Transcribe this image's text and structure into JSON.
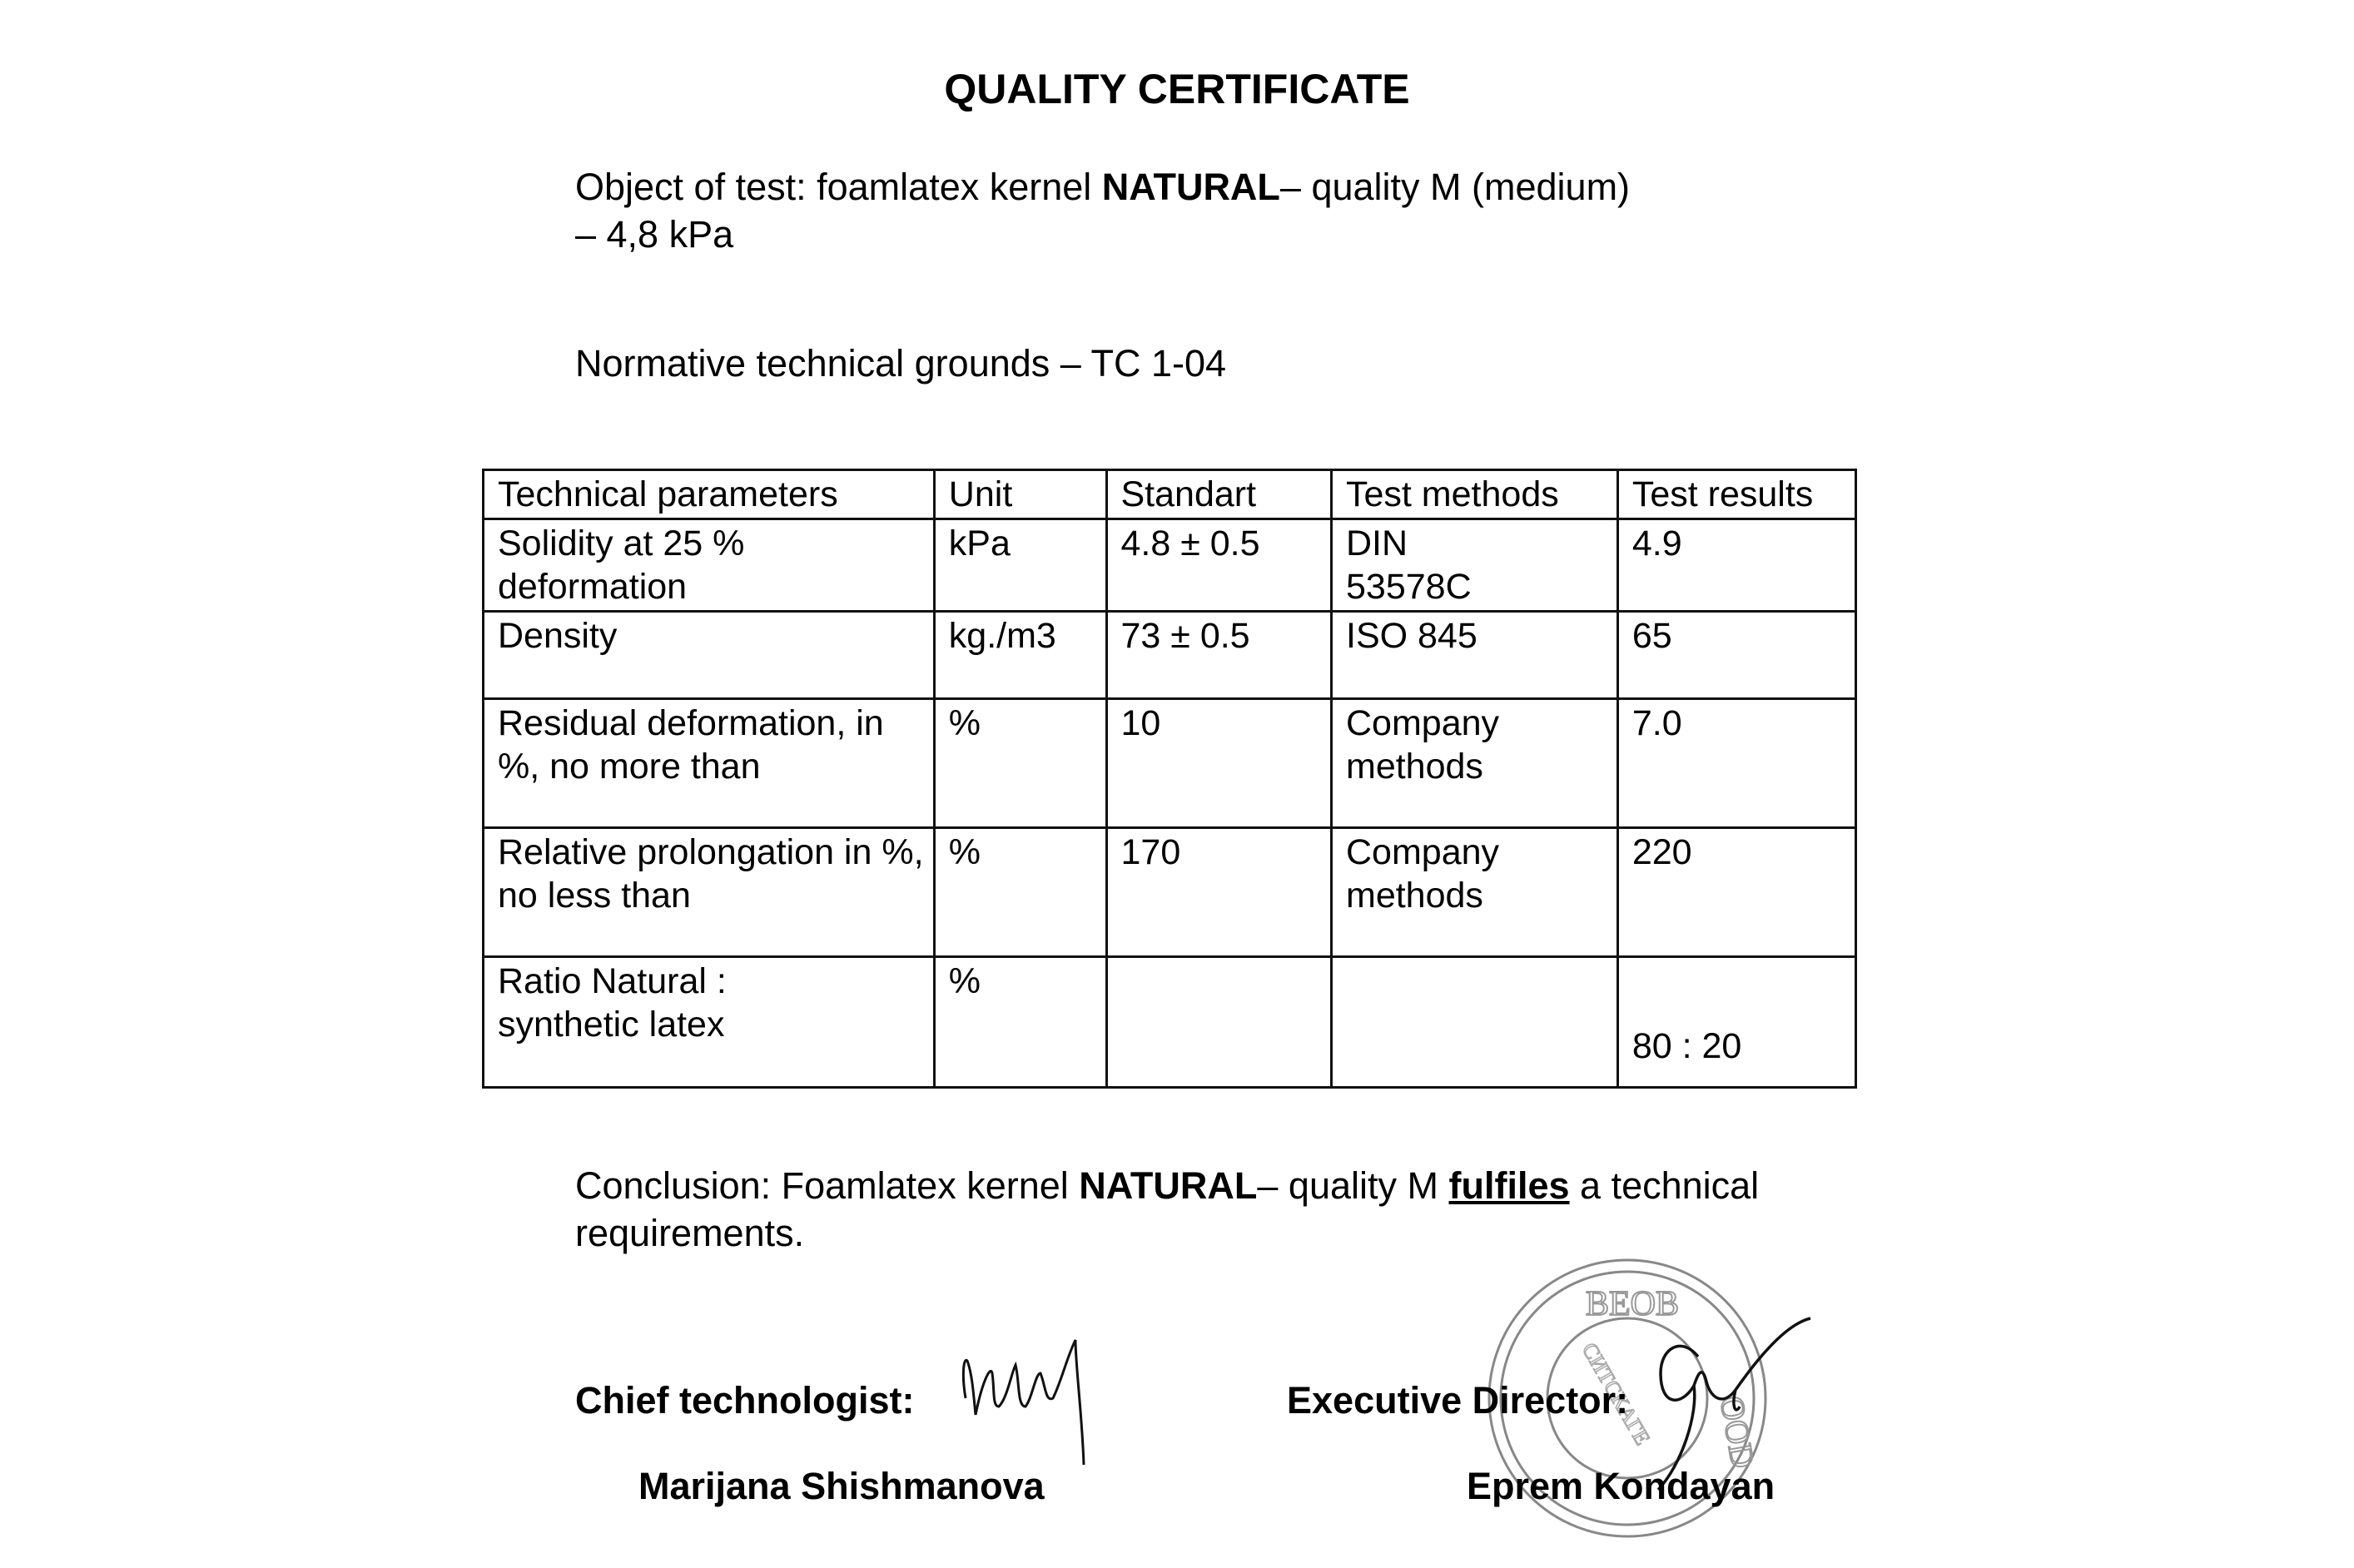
{
  "title": "QUALITY CERTIFICATE",
  "object": {
    "prefix": "Object of test: foamlatex kernel ",
    "product": "NATURAL",
    "suffix": "– quality M (medium)",
    "line2": "– 4,8 kPa"
  },
  "normative": "Normative technical grounds – TC 1-04",
  "table": {
    "headers": [
      "Technical parameters",
      "Unit",
      "Standart",
      "Test methods",
      "Test results"
    ],
    "rows": [
      [
        "Solidity at 25 % deformation",
        "kPa",
        "4.8 ± 0.5",
        "DIN 53578C",
        "4.9"
      ],
      [
        "Density",
        "kg./m3",
        "73 ± 0.5",
        "ISO 845",
        "65"
      ],
      [
        "Residual deformation, in %, no more than",
        "%",
        "10",
        "Company methods",
        "7.0"
      ],
      [
        "Relative prolongation in %, no less than",
        "%",
        "170",
        "Company methods",
        "220"
      ],
      [
        "Ratio Natural : synthetic latex",
        "%",
        "",
        "",
        "80 : 20"
      ]
    ]
  },
  "conclusion": {
    "prefix": "Conclusion: Foamlatex kernel ",
    "product": "NATURAL",
    "middle": "– quality M ",
    "emph": "fulfiles",
    "suffix": " a technical",
    "line2": "requirements."
  },
  "signatures": {
    "chief_label": "Chief technologist:",
    "chief_name": "Marijana Shishmanova",
    "director_label": "Executive Director:",
    "director_name": "Eprem Kondayan"
  },
  "stamp": {
    "text_top": "BEOB",
    "text_inner": "СИТСКАГЕ",
    "text_bottom": "OOD"
  }
}
